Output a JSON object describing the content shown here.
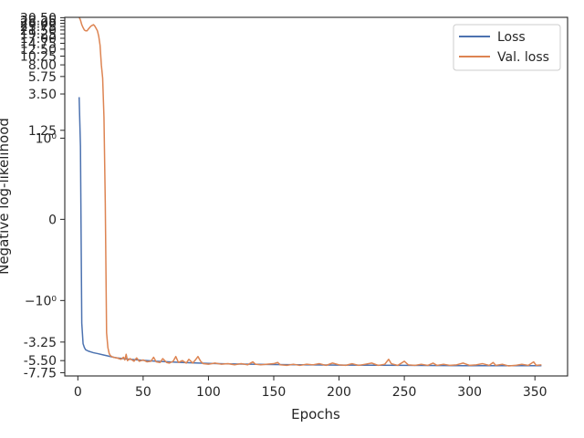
{
  "chart_data": {
    "type": "line",
    "xlabel": "Epochs",
    "ylabel": "Negative log-likelihood",
    "yscale": "symlog",
    "linthresh": 1,
    "xlim": [
      -10,
      375
    ],
    "ylim": [
      -8.5,
      30.8
    ],
    "x_ticks": [
      "0",
      "50",
      "100",
      "150",
      "200",
      "250",
      "300",
      "350"
    ],
    "y_ticks": [
      {
        "value": -7.75,
        "label": "-7.75"
      },
      {
        "value": -5.5,
        "label": "-5.50"
      },
      {
        "value": -3.25,
        "label": "-3.25"
      },
      {
        "value": -1,
        "label": "−10⁰"
      },
      {
        "value": 0,
        "label": "0"
      },
      {
        "value": 1,
        "label": "10⁰"
      },
      {
        "value": 1.25,
        "label": "1.25"
      },
      {
        "value": 3.5,
        "label": "3.50"
      },
      {
        "value": 5.75,
        "label": "5.75"
      },
      {
        "value": 8.0,
        "label": "8.00"
      },
      {
        "value": 10.25,
        "label": "10.25"
      },
      {
        "value": 12.5,
        "label": "12.50"
      },
      {
        "value": 14.75,
        "label": "14.75"
      },
      {
        "value": 17.0,
        "label": "17.00"
      },
      {
        "value": 19.25,
        "label": "19.25"
      },
      {
        "value": 21.5,
        "label": "21.50"
      },
      {
        "value": 23.75,
        "label": "23.75"
      },
      {
        "value": 26.0,
        "label": "26.00"
      },
      {
        "value": 28.25,
        "label": "28.25"
      },
      {
        "value": 30.5,
        "label": "30.50"
      }
    ],
    "legend_position": "upper-right",
    "series": [
      {
        "name": "Loss",
        "color": "#4c72b0",
        "points": [
          [
            1,
            3.2
          ],
          [
            2,
            0.9
          ],
          [
            3,
            -1.9
          ],
          [
            4,
            -3.4
          ],
          [
            5,
            -3.8
          ],
          [
            6,
            -4.05
          ],
          [
            8,
            -4.2
          ],
          [
            10,
            -4.3
          ],
          [
            12,
            -4.4
          ],
          [
            15,
            -4.5
          ],
          [
            20,
            -4.7
          ],
          [
            25,
            -4.9
          ],
          [
            30,
            -5.1
          ],
          [
            40,
            -5.3
          ],
          [
            50,
            -5.45
          ],
          [
            60,
            -5.6
          ],
          [
            80,
            -5.8
          ],
          [
            100,
            -5.95
          ],
          [
            120,
            -6.05
          ],
          [
            150,
            -6.15
          ],
          [
            200,
            -6.25
          ],
          [
            250,
            -6.3
          ],
          [
            300,
            -6.35
          ],
          [
            355,
            -6.35
          ]
        ]
      },
      {
        "name": "Val. loss",
        "color": "#dd8452",
        "points": [
          [
            1,
            31
          ],
          [
            2,
            28.5
          ],
          [
            3,
            25
          ],
          [
            4,
            23
          ],
          [
            5,
            21.5
          ],
          [
            6,
            21
          ],
          [
            7,
            21
          ],
          [
            8,
            22
          ],
          [
            9,
            23
          ],
          [
            10,
            24
          ],
          [
            11,
            24.5
          ],
          [
            12,
            25
          ],
          [
            13,
            24
          ],
          [
            14,
            22.5
          ],
          [
            15,
            21
          ],
          [
            16,
            18
          ],
          [
            17,
            14
          ],
          [
            18,
            8
          ],
          [
            19,
            5.5
          ],
          [
            20,
            1.8
          ],
          [
            21,
            0.2
          ],
          [
            22,
            -2.5
          ],
          [
            23,
            -3.8
          ],
          [
            24,
            -4.5
          ],
          [
            25,
            -4.8
          ],
          [
            27,
            -5.0
          ],
          [
            30,
            -5.1
          ],
          [
            33,
            -5.3
          ],
          [
            35,
            -5.0
          ],
          [
            36,
            -5.4
          ],
          [
            37,
            -4.6
          ],
          [
            38,
            -5.5
          ],
          [
            40,
            -5.2
          ],
          [
            43,
            -5.6
          ],
          [
            45,
            -5.1
          ],
          [
            47,
            -5.6
          ],
          [
            50,
            -5.4
          ],
          [
            53,
            -5.7
          ],
          [
            56,
            -5.6
          ],
          [
            58,
            -5.0
          ],
          [
            60,
            -5.7
          ],
          [
            63,
            -5.8
          ],
          [
            65,
            -5.2
          ],
          [
            68,
            -5.8
          ],
          [
            70,
            -5.9
          ],
          [
            73,
            -5.6
          ],
          [
            75,
            -4.9
          ],
          [
            77,
            -5.8
          ],
          [
            80,
            -5.5
          ],
          [
            83,
            -5.9
          ],
          [
            85,
            -5.3
          ],
          [
            88,
            -5.9
          ],
          [
            90,
            -5.4
          ],
          [
            92,
            -4.9
          ],
          [
            94,
            -5.6
          ],
          [
            96,
            -6.0
          ],
          [
            100,
            -6.1
          ],
          [
            105,
            -5.9
          ],
          [
            110,
            -6.1
          ],
          [
            115,
            -6.0
          ],
          [
            120,
            -6.2
          ],
          [
            125,
            -6.0
          ],
          [
            130,
            -6.2
          ],
          [
            134,
            -5.7
          ],
          [
            136,
            -6.1
          ],
          [
            140,
            -6.2
          ],
          [
            145,
            -6.1
          ],
          [
            150,
            -6.0
          ],
          [
            153,
            -5.8
          ],
          [
            155,
            -6.2
          ],
          [
            160,
            -6.3
          ],
          [
            165,
            -6.1
          ],
          [
            170,
            -6.3
          ],
          [
            175,
            -6.1
          ],
          [
            180,
            -6.2
          ],
          [
            185,
            -6.0
          ],
          [
            190,
            -6.3
          ],
          [
            195,
            -5.9
          ],
          [
            200,
            -6.2
          ],
          [
            205,
            -6.3
          ],
          [
            210,
            -6.0
          ],
          [
            215,
            -6.3
          ],
          [
            220,
            -6.1
          ],
          [
            225,
            -5.9
          ],
          [
            230,
            -6.3
          ],
          [
            235,
            -6.1
          ],
          [
            238,
            -5.3
          ],
          [
            240,
            -6.0
          ],
          [
            245,
            -6.3
          ],
          [
            250,
            -5.6
          ],
          [
            253,
            -6.2
          ],
          [
            258,
            -6.3
          ],
          [
            263,
            -6.1
          ],
          [
            268,
            -6.3
          ],
          [
            272,
            -5.9
          ],
          [
            275,
            -6.3
          ],
          [
            280,
            -6.1
          ],
          [
            285,
            -6.3
          ],
          [
            290,
            -6.2
          ],
          [
            295,
            -5.9
          ],
          [
            300,
            -6.3
          ],
          [
            305,
            -6.2
          ],
          [
            310,
            -6.0
          ],
          [
            315,
            -6.3
          ],
          [
            318,
            -5.8
          ],
          [
            320,
            -6.3
          ],
          [
            325,
            -6.1
          ],
          [
            330,
            -6.4
          ],
          [
            335,
            -6.3
          ],
          [
            340,
            -6.1
          ],
          [
            345,
            -6.3
          ],
          [
            349,
            -5.7
          ],
          [
            351,
            -6.3
          ],
          [
            355,
            -6.2
          ]
        ]
      }
    ]
  }
}
